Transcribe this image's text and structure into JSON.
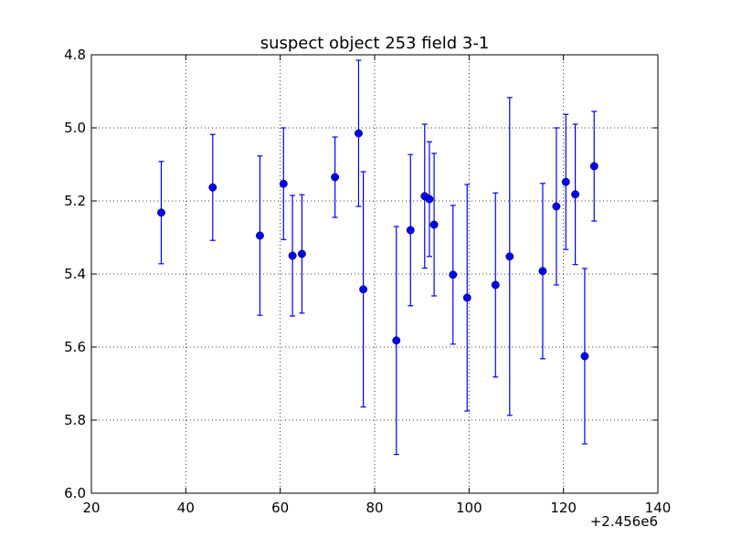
{
  "chart_data": {
    "type": "scatter",
    "title": "suspect object 253 field 3-1",
    "xlabel": "",
    "ylabel": "",
    "x_offset_label": "+2.456e6",
    "xlim": [
      2456020,
      2456140
    ],
    "ylim": [
      6.0,
      4.8
    ],
    "y_inverted": true,
    "grid": true,
    "marker_color": "#0000ff",
    "x_ticks": [
      2456020,
      2456040,
      2456060,
      2456080,
      2456100,
      2456120,
      2456140
    ],
    "x_tick_labels": [
      "20",
      "40",
      "60",
      "80",
      "100",
      "120",
      "140"
    ],
    "y_ticks": [
      4.8,
      5.0,
      5.2,
      5.4,
      5.6,
      5.8,
      6.0
    ],
    "y_tick_labels": [
      "4.8",
      "5.0",
      "5.2",
      "5.4",
      "5.6",
      "5.8",
      "6.0"
    ],
    "series": [
      {
        "points": [
          {
            "x": 2456034.8,
            "y": 5.232,
            "err": 0.14
          },
          {
            "x": 2456045.7,
            "y": 5.163,
            "err": 0.145
          },
          {
            "x": 2456055.7,
            "y": 5.295,
            "err": 0.218
          },
          {
            "x": 2456060.7,
            "y": 5.153,
            "err": 0.153
          },
          {
            "x": 2456062.6,
            "y": 5.35,
            "err": 0.165
          },
          {
            "x": 2456064.6,
            "y": 5.345,
            "err": 0.162
          },
          {
            "x": 2456071.6,
            "y": 5.135,
            "err": 0.11
          },
          {
            "x": 2456076.6,
            "y": 5.015,
            "err": 0.2
          },
          {
            "x": 2456077.6,
            "y": 5.442,
            "err": 0.322
          },
          {
            "x": 2456084.6,
            "y": 5.582,
            "err": 0.312
          },
          {
            "x": 2456087.6,
            "y": 5.28,
            "err": 0.207
          },
          {
            "x": 2456090.6,
            "y": 5.187,
            "err": 0.197
          },
          {
            "x": 2456091.6,
            "y": 5.195,
            "err": 0.157
          },
          {
            "x": 2456092.6,
            "y": 5.265,
            "err": 0.195
          },
          {
            "x": 2456096.6,
            "y": 5.402,
            "err": 0.19
          },
          {
            "x": 2456099.6,
            "y": 5.465,
            "err": 0.31
          },
          {
            "x": 2456105.6,
            "y": 5.43,
            "err": 0.252
          },
          {
            "x": 2456108.6,
            "y": 5.352,
            "err": 0.435
          },
          {
            "x": 2456115.6,
            "y": 5.392,
            "err": 0.24
          },
          {
            "x": 2456118.5,
            "y": 5.215,
            "err": 0.215
          },
          {
            "x": 2456120.5,
            "y": 5.148,
            "err": 0.185
          },
          {
            "x": 2456122.5,
            "y": 5.182,
            "err": 0.192
          },
          {
            "x": 2456124.5,
            "y": 5.625,
            "err": 0.24
          },
          {
            "x": 2456126.5,
            "y": 5.105,
            "err": 0.15
          }
        ]
      }
    ]
  }
}
